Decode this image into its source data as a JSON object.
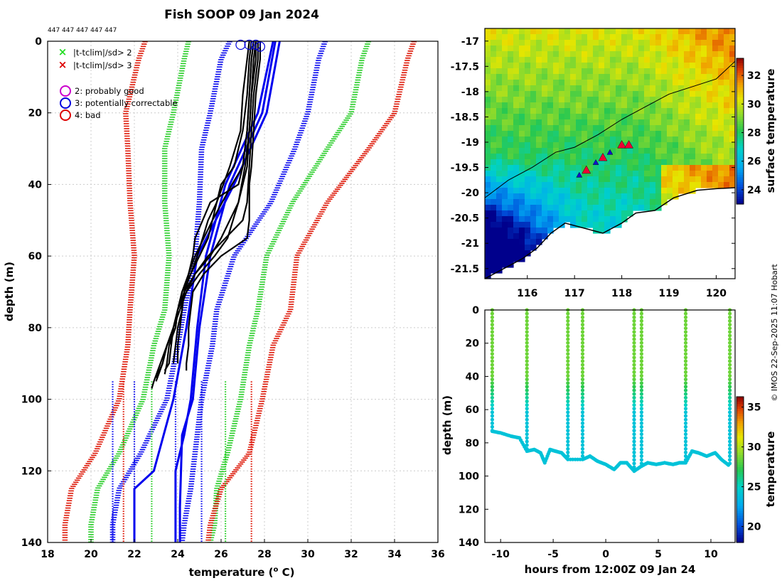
{
  "figure": {
    "title": "Fish SOOP 09 Jan 2024",
    "id_strip": "447 447 447 447 447",
    "credit": "© IMOS 22-Sep-2025 11:07 Hobart"
  },
  "legend": {
    "items": [
      {
        "symbol": "×",
        "color": "#22dd22",
        "label": "|t-tclim|/sd> 2"
      },
      {
        "symbol": "×",
        "color": "#dd0000",
        "label": "|t-tclim|/sd> 3"
      },
      {
        "symbol": "○",
        "color": "#cc00cc",
        "label": "2: probably good"
      },
      {
        "symbol": "○",
        "color": "#0000dd",
        "label": "3: potentially correctable"
      },
      {
        "symbol": "○",
        "color": "#dd0000",
        "label": "4: bad"
      }
    ]
  },
  "colors": {
    "black": "#000000",
    "blue": "#0000ee",
    "green": "#22cc22",
    "red": "#dd1100",
    "grid": "#cccccc"
  },
  "chart_data": [
    {
      "id": "profiles",
      "type": "line",
      "title": "Fish SOOP 09 Jan 2024",
      "xlabel": "temperature (",
      "xlabel_sup": "o",
      "xlabel_end": " C)",
      "ylabel": "depth (m)",
      "xlim": [
        18,
        36
      ],
      "ylim": [
        140,
        0
      ],
      "xticks": [
        "18",
        "20",
        "22",
        "24",
        "26",
        "28",
        "30",
        "32",
        "34",
        "36"
      ],
      "yticks": [
        "0",
        "20",
        "40",
        "60",
        "80",
        "100",
        "120",
        "140"
      ],
      "grid": true,
      "climatology_envelopes": [
        {
          "name": "red-lower",
          "color": "#dd1100",
          "depth": [
            0,
            5,
            20,
            30,
            45,
            60,
            75,
            85,
            100,
            115,
            125,
            135,
            140
          ],
          "temp": [
            22.5,
            22.2,
            21.6,
            21.7,
            21.8,
            22.0,
            21.8,
            21.7,
            21.3,
            20.2,
            19.1,
            18.8,
            18.8
          ]
        },
        {
          "name": "green-lower",
          "color": "#22cc22",
          "depth": [
            0,
            5,
            20,
            30,
            45,
            60,
            75,
            85,
            100,
            115,
            125,
            135,
            140
          ],
          "temp": [
            24.5,
            24.3,
            23.8,
            23.4,
            23.4,
            23.6,
            23.4,
            22.9,
            22.4,
            21.3,
            20.3,
            20.0,
            20.0
          ]
        },
        {
          "name": "blue-lower",
          "color": "#0000ee",
          "depth": [
            0,
            5,
            20,
            30,
            45,
            60,
            75,
            85,
            100,
            115,
            125,
            135,
            140
          ],
          "temp": [
            26.4,
            26.0,
            25.5,
            25.1,
            25.0,
            24.8,
            24.3,
            24.0,
            23.5,
            22.3,
            21.3,
            21.0,
            21.0
          ]
        },
        {
          "name": "blue-upper",
          "color": "#0000ee",
          "depth": [
            0,
            5,
            20,
            30,
            45,
            60,
            75,
            85,
            100,
            115,
            125,
            135,
            140
          ],
          "temp": [
            30.8,
            30.5,
            30.0,
            29.4,
            28.3,
            26.6,
            25.8,
            25.6,
            25.1,
            24.8,
            24.6,
            24.3,
            24.2
          ]
        },
        {
          "name": "green-upper",
          "color": "#22cc22",
          "depth": [
            0,
            5,
            20,
            30,
            45,
            60,
            75,
            85,
            100,
            115,
            125,
            135,
            140
          ],
          "temp": [
            32.8,
            32.5,
            32.0,
            30.9,
            29.3,
            28.1,
            27.7,
            27.3,
            26.9,
            26.3,
            25.8,
            25.7,
            25.5
          ]
        },
        {
          "name": "red-upper",
          "color": "#dd1100",
          "depth": [
            0,
            5,
            20,
            30,
            45,
            60,
            75,
            85,
            100,
            115,
            125,
            135,
            140
          ],
          "temp": [
            34.9,
            34.6,
            34.0,
            32.8,
            30.9,
            29.5,
            29.2,
            28.4,
            27.9,
            27.3,
            26.0,
            25.5,
            25.4
          ]
        }
      ],
      "climatology_means": [
        {
          "color": "#0000ee",
          "depth": [
            0,
            20,
            40,
            60,
            80,
            100,
            120,
            125,
            140
          ],
          "temp": [
            28.7,
            28.1,
            26.6,
            24.9,
            24.4,
            23.8,
            22.9,
            22.0,
            22.0
          ]
        },
        {
          "color": "#0000ee",
          "depth": [
            0,
            20,
            40,
            60,
            80,
            100,
            110,
            130,
            140
          ],
          "temp": [
            28.5,
            27.9,
            26.4,
            25.5,
            25.0,
            24.7,
            24.2,
            24.1,
            24.1
          ]
        },
        {
          "color": "#0000ee",
          "depth": [
            0,
            20,
            40,
            60,
            80,
            100,
            110,
            120,
            140
          ],
          "temp": [
            28.4,
            27.7,
            26.2,
            25.3,
            24.9,
            24.6,
            24.3,
            23.9,
            23.9
          ]
        }
      ],
      "clim_ticks": [
        {
          "color": "#0000ee",
          "temp": 21.0,
          "depth": [
            95,
            140
          ]
        },
        {
          "color": "#0000ee",
          "temp": 22.0,
          "depth": [
            95,
            140
          ]
        },
        {
          "color": "#0000ee",
          "temp": 23.9,
          "depth": [
            95,
            140
          ]
        },
        {
          "color": "#0000ee",
          "temp": 25.1,
          "depth": [
            95,
            140
          ]
        },
        {
          "color": "#22cc22",
          "temp": 22.8,
          "depth": [
            95,
            140
          ]
        },
        {
          "color": "#22cc22",
          "temp": 26.2,
          "depth": [
            95,
            140
          ]
        },
        {
          "color": "#dd1100",
          "temp": 21.5,
          "depth": [
            95,
            140
          ]
        },
        {
          "color": "#dd1100",
          "temp": 27.4,
          "depth": [
            95,
            140
          ]
        }
      ],
      "profiles": [
        {
          "depth": [
            0,
            5,
            15,
            25,
            35,
            40,
            50,
            55,
            60,
            65,
            70,
            75,
            80,
            85,
            90,
            93
          ],
          "temp": [
            27.5,
            27.4,
            27.3,
            27.2,
            27.0,
            26.5,
            25.6,
            25.2,
            24.8,
            24.5,
            24.2,
            24.0,
            23.9,
            23.6,
            23.5,
            23.4
          ]
        },
        {
          "depth": [
            0,
            5,
            15,
            25,
            35,
            45,
            55,
            60,
            65,
            70,
            75,
            80,
            85,
            90,
            95
          ],
          "temp": [
            27.6,
            27.6,
            27.4,
            27.3,
            27.2,
            26.8,
            26.0,
            25.5,
            24.8,
            24.4,
            24.0,
            23.8,
            23.5,
            23.3,
            23.0
          ]
        },
        {
          "depth": [
            0,
            5,
            15,
            25,
            35,
            40,
            45,
            50,
            60,
            65,
            70,
            75,
            80,
            85,
            90,
            92
          ],
          "temp": [
            27.4,
            27.3,
            27.2,
            27.0,
            26.6,
            26.0,
            25.8,
            25.4,
            24.9,
            24.6,
            24.2,
            24.0,
            23.8,
            23.7,
            23.6,
            23.4
          ]
        },
        {
          "depth": [
            0,
            5,
            15,
            25,
            35,
            45,
            50,
            55,
            60,
            65,
            70,
            75,
            80,
            85,
            90
          ],
          "temp": [
            27.7,
            27.7,
            27.5,
            27.4,
            27.3,
            27.2,
            27.0,
            26.2,
            25.4,
            24.8,
            24.3,
            24.2,
            24.0,
            23.9,
            23.8
          ]
        },
        {
          "depth": [
            0,
            5,
            15,
            25,
            35,
            40,
            45,
            50,
            55,
            60,
            65,
            70,
            75,
            80,
            85,
            90,
            94
          ],
          "temp": [
            27.3,
            27.2,
            27.0,
            26.9,
            26.4,
            26.1,
            25.8,
            25.6,
            25.4,
            25.0,
            24.6,
            24.3,
            24.0,
            23.9,
            23.5,
            23.3,
            23.0
          ]
        },
        {
          "depth": [
            0,
            5,
            15,
            25,
            35,
            45,
            55,
            60,
            65,
            70,
            75,
            80,
            85,
            90,
            95,
            97
          ],
          "temp": [
            27.6,
            27.5,
            27.4,
            27.3,
            27.1,
            26.8,
            26.3,
            25.7,
            25.0,
            24.4,
            24.1,
            23.8,
            23.5,
            23.2,
            22.9,
            22.8
          ]
        },
        {
          "depth": [
            0,
            5,
            15,
            25,
            35,
            40,
            50,
            55,
            60,
            65,
            70,
            75,
            80,
            85,
            90,
            92
          ],
          "temp": [
            27.8,
            27.8,
            27.6,
            27.5,
            27.4,
            27.3,
            27.3,
            27.2,
            26.0,
            25.2,
            24.7,
            24.6,
            24.5,
            24.5,
            24.4,
            24.4
          ]
        },
        {
          "depth": [
            0,
            5,
            15,
            25,
            35,
            40,
            45,
            55,
            60,
            65,
            70,
            75,
            80,
            85,
            90
          ],
          "temp": [
            27.5,
            27.4,
            27.3,
            27.2,
            27.0,
            26.8,
            25.5,
            24.8,
            24.7,
            24.5,
            24.3,
            24.2,
            24.1,
            24.0,
            24.0
          ]
        }
      ],
      "flag_circles": [
        {
          "temp": 26.9,
          "depth": 1
        },
        {
          "temp": 27.3,
          "depth": 1
        },
        {
          "temp": 27.6,
          "depth": 1
        },
        {
          "temp": 27.8,
          "depth": 1.5
        }
      ]
    },
    {
      "id": "map",
      "type": "heatmap",
      "lon_range": [
        115.1,
        120.4
      ],
      "lat_range": [
        -21.7,
        -16.75
      ],
      "xticks": [
        "116",
        "117",
        "118",
        "119",
        "120"
      ],
      "xtick_values": [
        116,
        117,
        118,
        119,
        120
      ],
      "yticks": [
        "-17",
        "-17.5",
        "-18",
        "-18.5",
        "-19",
        "-19.5",
        "-20",
        "-20.5",
        "-21",
        "-21.5"
      ],
      "ytick_values": [
        -17,
        -17.5,
        -18,
        -18.5,
        -19,
        -19.5,
        -20,
        -20.5,
        -21,
        -21.5
      ],
      "colorbar_label": "surface temperature",
      "colorbar_ticks": [
        "24",
        "26",
        "28",
        "30",
        "32"
      ],
      "colorbar_values": [
        24,
        26,
        28,
        30,
        32
      ],
      "colorbar_range": [
        23.0,
        33.2
      ],
      "isobath": [
        [
          115.1,
          -20.1
        ],
        [
          115.6,
          -19.75
        ],
        [
          116.1,
          -19.5
        ],
        [
          116.6,
          -19.2
        ],
        [
          117.0,
          -19.1
        ],
        [
          117.5,
          -18.85
        ],
        [
          118.0,
          -18.55
        ],
        [
          118.5,
          -18.3
        ],
        [
          119.0,
          -18.05
        ],
        [
          119.5,
          -17.9
        ],
        [
          120.0,
          -17.75
        ],
        [
          120.4,
          -17.4
        ]
      ],
      "coastline": [
        [
          115.1,
          -21.7
        ],
        [
          115.5,
          -21.5
        ],
        [
          115.9,
          -21.3
        ],
        [
          116.2,
          -21.1
        ],
        [
          116.5,
          -20.8
        ],
        [
          116.8,
          -20.6
        ],
        [
          117.2,
          -20.7
        ],
        [
          117.6,
          -20.8
        ],
        [
          118.0,
          -20.6
        ],
        [
          118.3,
          -20.4
        ],
        [
          118.7,
          -20.35
        ],
        [
          119.1,
          -20.1
        ],
        [
          119.6,
          -19.95
        ],
        [
          120.0,
          -19.92
        ],
        [
          120.4,
          -19.9
        ]
      ],
      "track_points": [
        {
          "lon": 117.1,
          "lat": -19.65,
          "kind": "blue"
        },
        {
          "lon": 117.25,
          "lat": -19.55,
          "kind": "red"
        },
        {
          "lon": 117.45,
          "lat": -19.4,
          "kind": "blue"
        },
        {
          "lon": 117.6,
          "lat": -19.3,
          "kind": "red"
        },
        {
          "lon": 117.75,
          "lat": -19.2,
          "kind": "blue"
        },
        {
          "lon": 118.0,
          "lat": -19.05,
          "kind": "red"
        },
        {
          "lon": 118.15,
          "lat": -19.05,
          "kind": "red"
        }
      ]
    },
    {
      "id": "timeseries",
      "type": "scatter",
      "xlabel": "hours from 12:00Z 09 Jan 24",
      "ylabel": "depth (m)",
      "xlim": [
        -11.5,
        12.3
      ],
      "ylim": [
        140,
        0
      ],
      "xticks": [
        "-10",
        "-5",
        "0",
        "5",
        "10"
      ],
      "xtick_values": [
        -10,
        -5,
        0,
        5,
        10
      ],
      "yticks": [
        "0",
        "20",
        "40",
        "60",
        "80",
        "100",
        "120",
        "140"
      ],
      "ytick_values": [
        0,
        20,
        40,
        60,
        80,
        100,
        120,
        140
      ],
      "colorbar_label": "temperature",
      "colorbar_ticks": [
        "20",
        "25",
        "30",
        "35"
      ],
      "colorbar_values": [
        20,
        25,
        30,
        35
      ],
      "colorbar_range": [
        18,
        36.3
      ],
      "casts": [
        {
          "hour": -10.8,
          "bottom": 73
        },
        {
          "hour": -7.5,
          "bottom": 85
        },
        {
          "hour": -3.6,
          "bottom": 90
        },
        {
          "hour": -2.2,
          "bottom": 90
        },
        {
          "hour": 2.7,
          "bottom": 97
        },
        {
          "hour": 3.4,
          "bottom": 94
        },
        {
          "hour": 7.6,
          "bottom": 92
        },
        {
          "hour": 11.8,
          "bottom": 94
        }
      ],
      "bottom_track": {
        "hour": [
          -10.8,
          -10.0,
          -9.0,
          -8.2,
          -7.5,
          -6.8,
          -6.2,
          -5.8,
          -5.3,
          -4.8,
          -4.2,
          -3.6,
          -2.2,
          -1.5,
          -0.8,
          0,
          0.8,
          1.4,
          2.0,
          2.7,
          3.4,
          4.0,
          4.8,
          5.6,
          6.4,
          7.0,
          7.6,
          8.2,
          8.8,
          9.6,
          10.4,
          11.0,
          11.8
        ],
        "depth": [
          73,
          74,
          76,
          77,
          85,
          84,
          86,
          92,
          84,
          85,
          86,
          90,
          90,
          88,
          91,
          93,
          96,
          92,
          92,
          97,
          94,
          92,
          93,
          92,
          93,
          92,
          92,
          85,
          86,
          88,
          86,
          90,
          94
        ]
      }
    }
  ]
}
